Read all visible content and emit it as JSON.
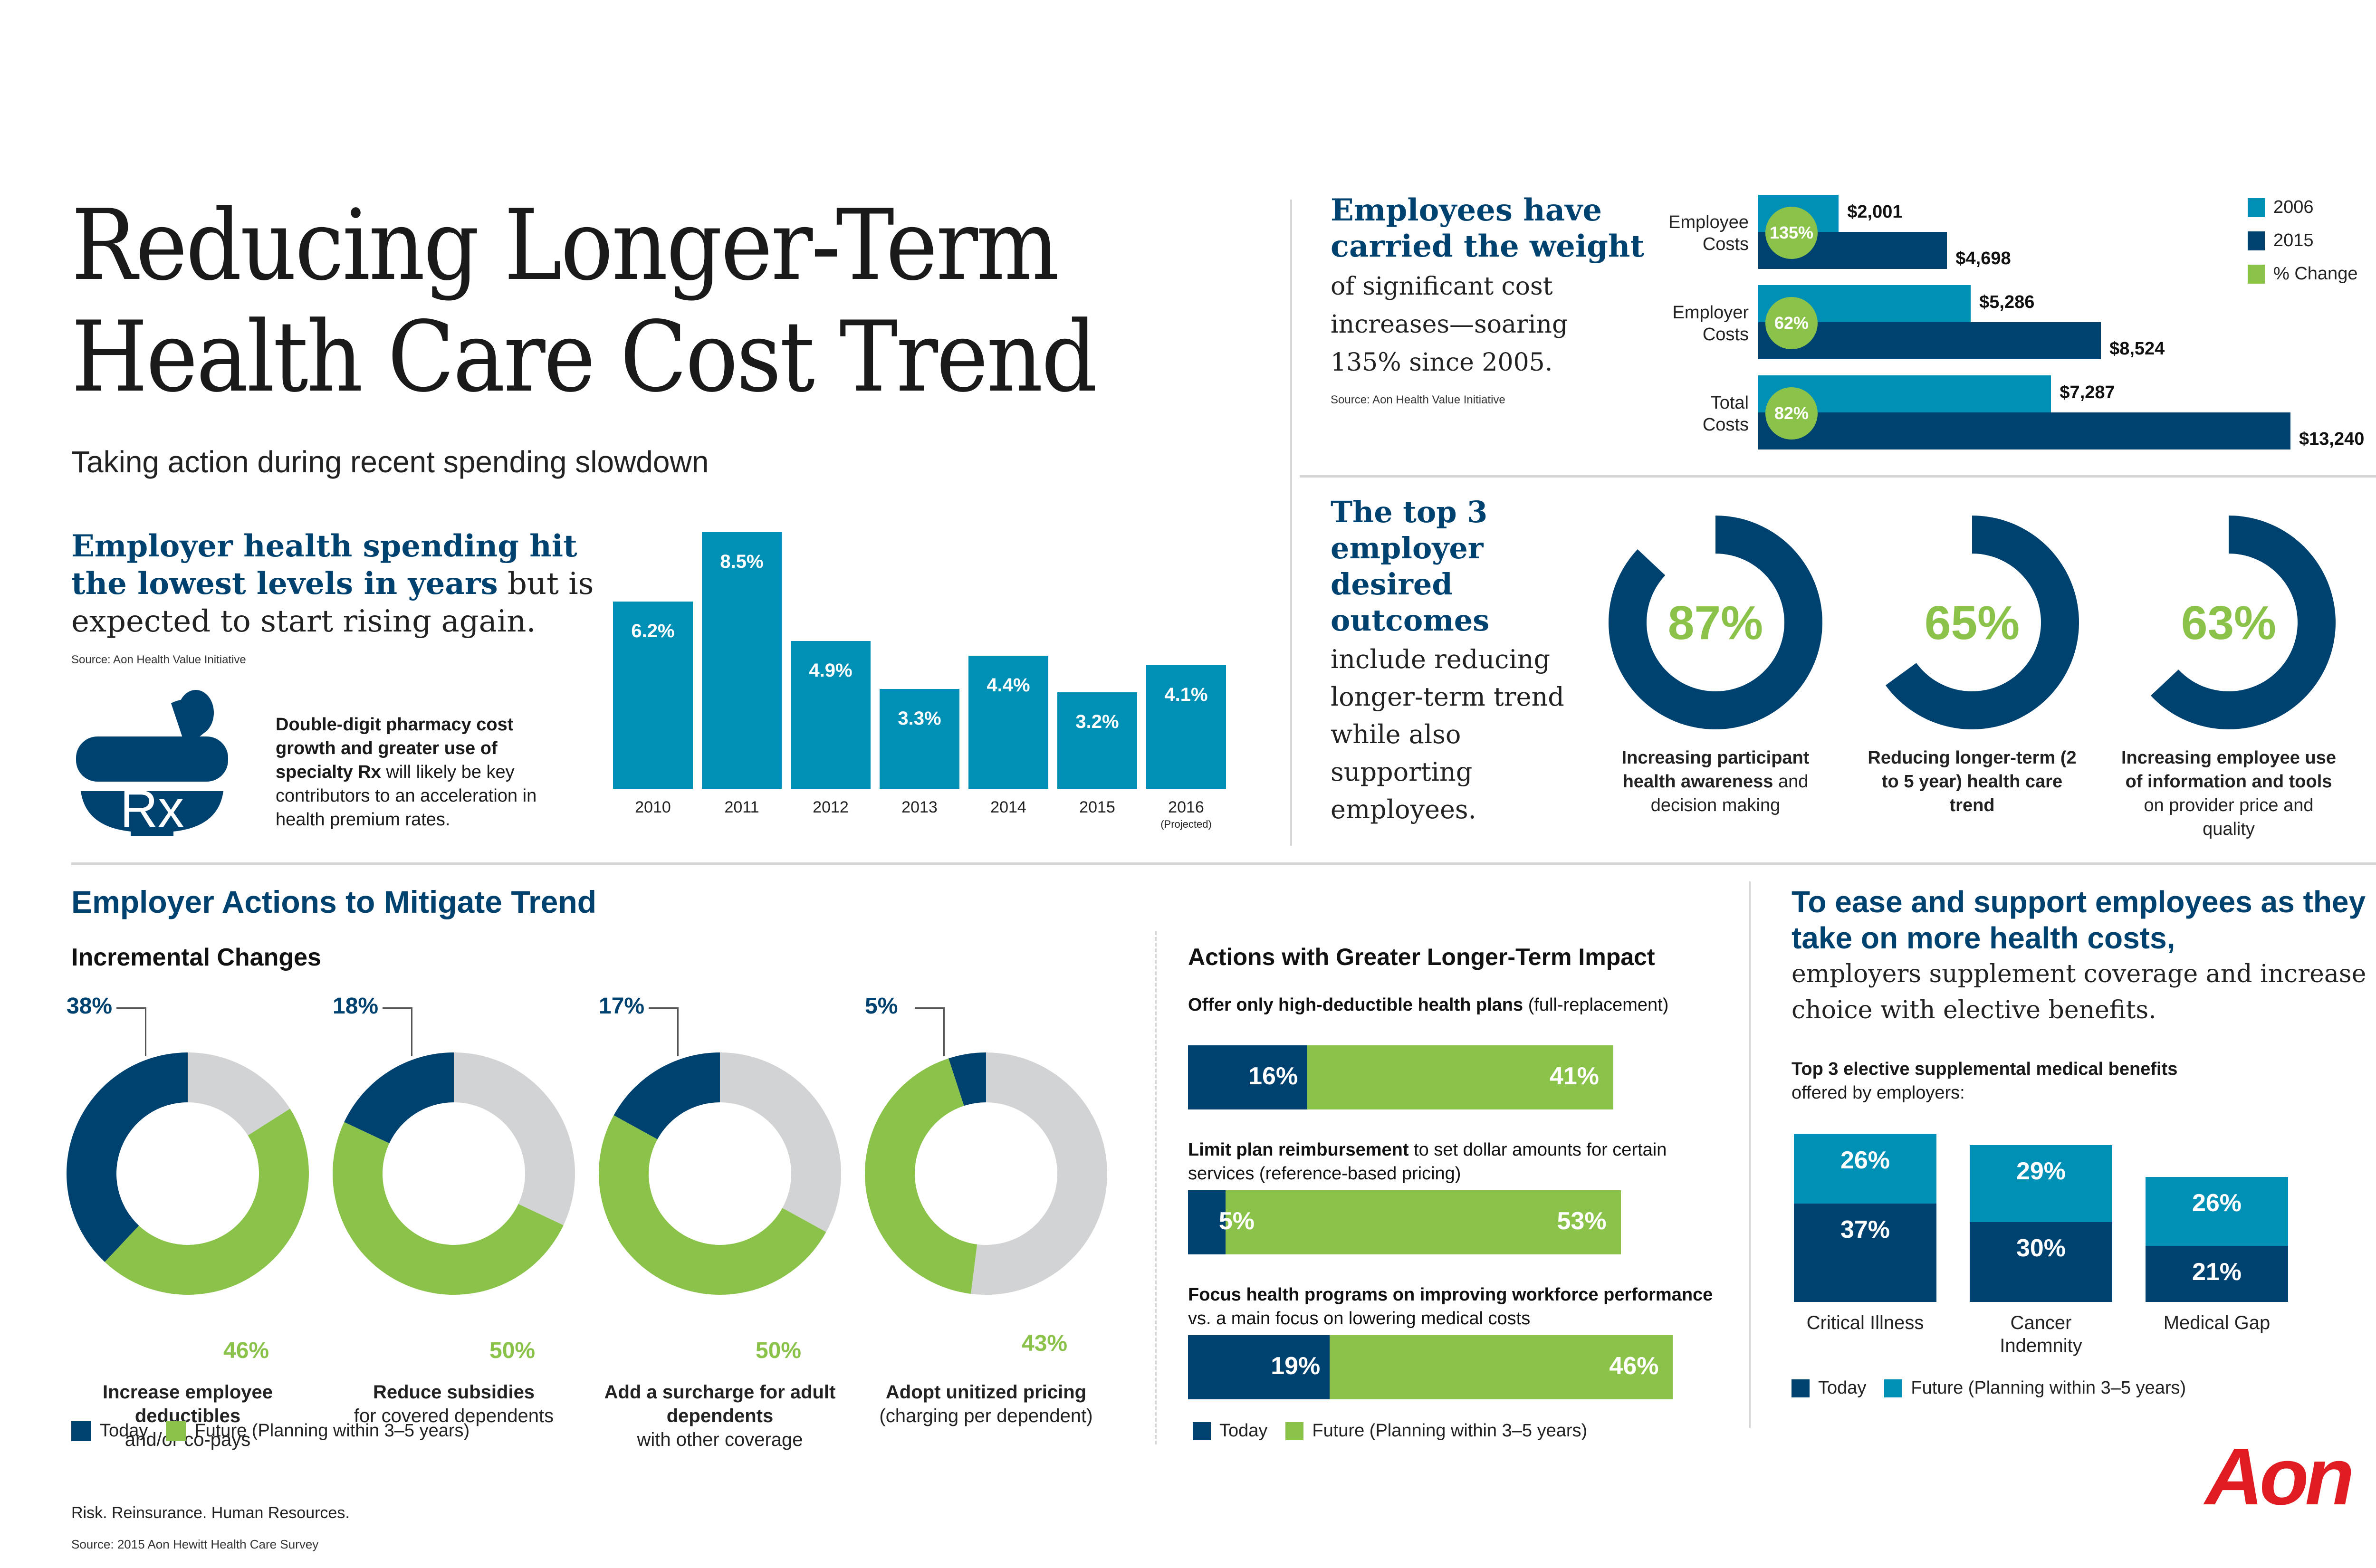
{
  "header": {
    "title_line1": "Reducing Longer-Term",
    "title_line2": "Health Care Cost Trend",
    "subtitle": "Taking action during recent spending slowdown"
  },
  "spending": {
    "heading_bold1": "Employer health spending hit",
    "heading_bold2": "the lowest levels in years",
    "heading_rest": " but is expected to start rising again.",
    "source": "Source: Aon Health Value Initiative",
    "rx_icon": "mortar-pestle-rx-icon",
    "rx_text_bold": "Double-digit pharmacy cost growth and greater use of specialty Rx",
    "rx_text_rest": " will likely be key contributors to an acceleration in health premium rates.",
    "rx_glyph": "Rx"
  },
  "employee_costs": {
    "heading_bold": "Employees have carried the weight",
    "heading_rest": " of significant cost increases—soaring 135% since 2005.",
    "source": "Source: Aon Health Value Initiative"
  },
  "outcomes": {
    "heading_bold": "The top 3 employer desired outcomes",
    "heading_rest": " include reducing longer-term trend while also supporting employees."
  },
  "actions": {
    "section_title": "Employer Actions to Mitigate Trend",
    "incremental_title": "Incremental Changes",
    "longterm_title": "Actions with Greater Longer-Term Impact",
    "legend_today": "Today",
    "legend_future": "Future (Planning within 3–5 years)"
  },
  "supplemental": {
    "heading_bold": "To ease and support employees as they take on more health costs,",
    "heading_rest": "employers supplement coverage and increase choice with elective benefits.",
    "chart_title_bold": "Top 3 elective supplemental medical benefits",
    "chart_title_rest": "offered by employers:",
    "legend_today": "Today",
    "legend_future": "Future (Planning within 3–5 years)"
  },
  "footer": {
    "tagline": "Risk. Reinsurance. Human Resources.",
    "source": "Source: 2015 Aon Hewitt Health Care Survey",
    "logo": "Aon"
  },
  "colors": {
    "navy": "#00426f",
    "teal": "#0090b5",
    "green": "#8bc34a",
    "grey": "#d1d3d4",
    "aon_red": "#e11b22"
  },
  "chart_data": [
    {
      "id": "spending_trend",
      "type": "bar",
      "title": "Employer health spending trend",
      "categories": [
        "2010",
        "2011",
        "2012",
        "2013",
        "2014",
        "2015",
        "2016"
      ],
      "category_notes": {
        "2016": "(Projected)"
      },
      "values": [
        6.2,
        8.5,
        4.9,
        3.3,
        4.4,
        3.2,
        4.1
      ],
      "labels": [
        "6.2%",
        "8.5%",
        "4.9%",
        "3.3%",
        "4.4%",
        "3.2%",
        "4.1%"
      ],
      "xlabel": "",
      "ylabel": "",
      "ylim": [
        0,
        8.5
      ],
      "grid": false
    },
    {
      "id": "cost_comparison",
      "type": "bar",
      "orientation": "horizontal",
      "categories": [
        "Employee Costs",
        "Employer Costs",
        "Total Costs"
      ],
      "series": [
        {
          "name": "2006",
          "values": [
            2001,
            5286,
            7287
          ],
          "labels": [
            "$2,001",
            "$5,286",
            "$7,287"
          ]
        },
        {
          "name": "2015",
          "values": [
            4698,
            8524,
            13240
          ],
          "labels": [
            "$4,698",
            "$8,524",
            "$13,240"
          ]
        }
      ],
      "pct_change": {
        "name": "% Change",
        "labels": [
          "135%",
          "62%",
          "82%"
        ]
      },
      "legend": [
        "2006",
        "2015",
        "% Change"
      ],
      "legend_position": "top-right",
      "xlim": [
        0,
        13240
      ]
    },
    {
      "id": "desired_outcomes",
      "type": "pie",
      "style": "ring",
      "items": [
        {
          "value": 87,
          "label": "87%",
          "caption_bold": "Increasing participant health awareness",
          "caption_rest": " and decision making"
        },
        {
          "value": 65,
          "label": "65%",
          "caption_bold": "Reducing longer-term (2 to 5 year) health care trend",
          "caption_rest": ""
        },
        {
          "value": 63,
          "label": "63%",
          "caption_bold": "Increasing employee use of information and tools",
          "caption_rest": " on provider price and quality"
        }
      ]
    },
    {
      "id": "incremental_changes",
      "type": "pie",
      "style": "donut",
      "series_names": [
        "Today",
        "Future (Planning within 3–5 years)"
      ],
      "items": [
        {
          "today": 38,
          "future": 46,
          "today_label": "38%",
          "future_label": "46%",
          "caption_bold": "Increase employee deductibles",
          "caption_rest": "and/or co-pays"
        },
        {
          "today": 18,
          "future": 50,
          "today_label": "18%",
          "future_label": "50%",
          "caption_bold": "Reduce subsidies",
          "caption_rest": "for covered dependents"
        },
        {
          "today": 17,
          "future": 50,
          "today_label": "17%",
          "future_label": "50%",
          "caption_bold": "Add a surcharge for adult dependents",
          "caption_rest": "with other coverage"
        },
        {
          "today": 5,
          "future": 43,
          "today_label": "5%",
          "future_label": "43%",
          "caption_bold": "Adopt unitized pricing",
          "caption_rest": "(charging per dependent)"
        }
      ]
    },
    {
      "id": "longer_term_actions",
      "type": "bar",
      "orientation": "horizontal",
      "stacked": true,
      "series_names": [
        "Today",
        "Future (Planning within 3–5 years)"
      ],
      "items": [
        {
          "title_bold": "Offer only high-deductible health plans",
          "title_rest": " (full-replacement)",
          "today": 16,
          "future": 41,
          "today_label": "16%",
          "future_label": "41%"
        },
        {
          "title_bold": "Limit plan reimbursement",
          "title_rest": " to set dollar amounts for certain services (reference-based pricing)",
          "today": 5,
          "future": 53,
          "today_label": "5%",
          "future_label": "53%"
        },
        {
          "title_bold": "Focus health programs on improving workforce performance",
          "title_rest": " vs. a main focus on lowering medical costs",
          "today": 19,
          "future": 46,
          "today_label": "19%",
          "future_label": "46%"
        }
      ]
    },
    {
      "id": "supplemental_benefits",
      "type": "bar",
      "stacked": true,
      "categories": [
        "Critical Illness",
        "Cancer Indemnity",
        "Medical Gap"
      ],
      "series": [
        {
          "name": "Today",
          "values": [
            37,
            30,
            21
          ],
          "labels": [
            "37%",
            "30%",
            "21%"
          ]
        },
        {
          "name": "Future (Planning within 3–5 years)",
          "values": [
            26,
            29,
            26
          ],
          "labels": [
            "26%",
            "29%",
            "26%"
          ]
        }
      ],
      "legend_position": "bottom-left"
    }
  ]
}
